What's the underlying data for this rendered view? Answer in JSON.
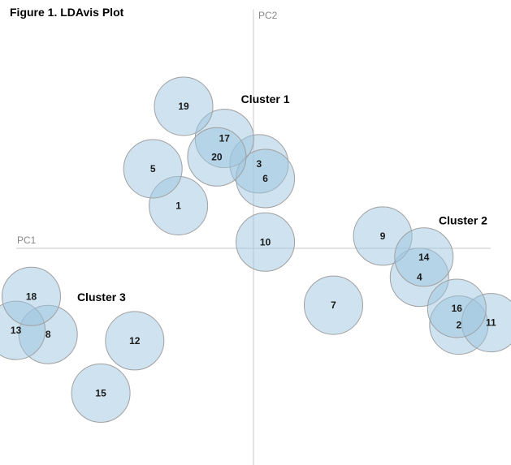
{
  "chart_data": {
    "type": "scatter",
    "title": "Figure 1. LDAvis Plot",
    "xlabel": "PC1",
    "ylabel": "PC2",
    "grid": false,
    "colors": {
      "bubble": "#9ec6df",
      "bubble_stroke": "#a0a0a0",
      "axis": "#c8c8c8"
    },
    "points": [
      {
        "label": "1",
        "x": -0.215,
        "y": 0.122
      },
      {
        "label": "2",
        "x": 0.588,
        "y": -0.22
      },
      {
        "label": "3",
        "x": 0.016,
        "y": 0.242
      },
      {
        "label": "4",
        "x": 0.475,
        "y": -0.083
      },
      {
        "label": "5",
        "x": -0.288,
        "y": 0.228
      },
      {
        "label": "6",
        "x": 0.034,
        "y": 0.2
      },
      {
        "label": "7",
        "x": 0.229,
        "y": -0.163
      },
      {
        "label": "8",
        "x": -0.588,
        "y": -0.247
      },
      {
        "label": "9",
        "x": 0.37,
        "y": 0.035
      },
      {
        "label": "10",
        "x": 0.034,
        "y": 0.018
      },
      {
        "label": "11",
        "x": 0.68,
        "y": -0.213
      },
      {
        "label": "12",
        "x": -0.34,
        "y": -0.265
      },
      {
        "label": "13",
        "x": -0.68,
        "y": -0.235
      },
      {
        "label": "14",
        "x": 0.488,
        "y": -0.025
      },
      {
        "label": "15",
        "x": -0.437,
        "y": -0.415
      },
      {
        "label": "16",
        "x": 0.582,
        "y": -0.172
      },
      {
        "label": "17",
        "x": -0.083,
        "y": 0.315
      },
      {
        "label": "18",
        "x": -0.636,
        "y": -0.138
      },
      {
        "label": "19",
        "x": -0.2,
        "y": 0.407
      },
      {
        "label": "20",
        "x": -0.105,
        "y": 0.262
      }
    ],
    "clusters": [
      {
        "label": "Cluster 1",
        "x": 0.034,
        "y": 0.428
      },
      {
        "label": "Cluster 2",
        "x": 0.6,
        "y": 0.08
      },
      {
        "label": "Cluster 3",
        "x": -0.435,
        "y": -0.14
      }
    ]
  }
}
